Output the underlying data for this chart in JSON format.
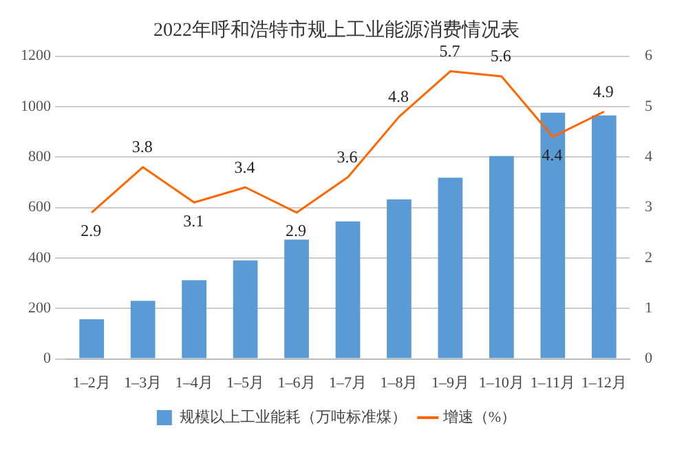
{
  "chart_data": {
    "type": "bar",
    "title": "2022年呼和浩特市规上工业能源消费情况表",
    "categories": [
      "1–2月",
      "1–3月",
      "1–4月",
      "1–5月",
      "1–6月",
      "1–7月",
      "1–8月",
      "1–9月",
      "1–10月",
      "1–11月",
      "1–12月"
    ],
    "series": [
      {
        "name": "规模以上工业能耗（万吨标准煤）",
        "color": "#5b9bd5",
        "values": [
          157,
          230,
          312,
          390,
          473,
          545,
          632,
          718,
          804,
          976,
          965
        ]
      },
      {
        "name": "增速（%）",
        "type": "line",
        "axis": "y2",
        "color": "#ff6600",
        "values": [
          2.9,
          3.8,
          3.1,
          3.4,
          2.9,
          3.6,
          4.8,
          5.7,
          5.6,
          4.4,
          4.9
        ],
        "value_labels": [
          "2.9",
          "3.8",
          "3.1",
          "3.4",
          "2.9",
          "3.6",
          "4.8",
          "5.7",
          "5.6",
          "4.4",
          "4.9"
        ]
      }
    ],
    "ylim": [
      0,
      1200
    ],
    "yticks": [
      0,
      200,
      400,
      600,
      800,
      1000,
      1200
    ],
    "y2lim": [
      0,
      6
    ],
    "y2ticks": [
      0,
      1,
      2,
      3,
      4,
      5,
      6
    ],
    "grid": "y",
    "legend": "bottom",
    "marker": "none"
  }
}
